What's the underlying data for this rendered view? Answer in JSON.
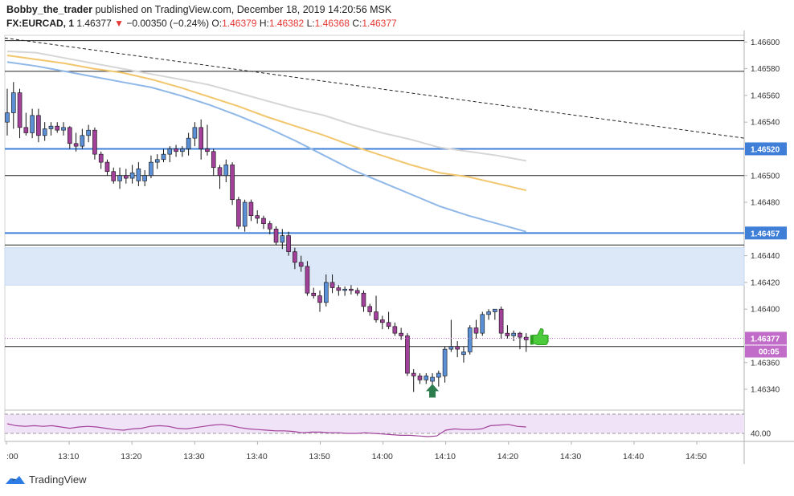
{
  "header": {
    "author": "Bobby_the_trader",
    "published_text": " published on TradingView.com, December 18, 2019 14:20:56 MSK",
    "symbol": "FX:EURCAD, 1",
    "last": "1.46377",
    "arrow": "▼",
    "change": "−0.00350 (−0.24%)",
    "o_label": "O:",
    "o_value": "1.46379",
    "h_label": "H:",
    "h_value": "1.46382",
    "l_label": "L:",
    "l_value": "1.46368",
    "c_label": "C:",
    "c_value": "1.46377"
  },
  "footer": {
    "brand": "TradingView",
    "logo_icon": "tradingview-logo-icon"
  },
  "colors": {
    "bull": "#5b8fd6",
    "bear": "#a2419a",
    "ma_gray": "#d6d6d6",
    "ma_orange": "#f2c66d",
    "ma_blue": "#8fb8e8",
    "level_blue": "#3f7fd8",
    "zone": "#dce8f8",
    "rsi_fill": "#f1e3f7",
    "rsi_line": "#a2419a",
    "price_badge": "#c06cc8",
    "arrow_green": "#2e7d4f",
    "thumb_green": "#4ccc3c"
  },
  "chart_data": {
    "type": "candlestick",
    "title": "",
    "ylim": [
      1.46325,
      1.46605
    ],
    "y_ticks": [
      "1.46600",
      "1.46580",
      "1.46560",
      "1.46540",
      "1.46500",
      "1.46480",
      "1.46440",
      "1.46420",
      "1.46400",
      "1.46360",
      "1.46340"
    ],
    "x_ticks": [
      ":00",
      "13:10",
      "13:20",
      "13:30",
      "13:40",
      "13:50",
      "14:00",
      "14:10",
      "14:20",
      "14:30",
      "14:40",
      "14:50"
    ],
    "price_labels": {
      "level_high": "1.46520",
      "level_low": "1.46457",
      "last": "1.46377",
      "countdown": "00:05"
    },
    "horizontal_levels": [
      {
        "price": 1.46601,
        "style": "black"
      },
      {
        "price": 1.46578,
        "style": "black"
      },
      {
        "price": 1.4652,
        "style": "blue"
      },
      {
        "price": 1.465,
        "style": "black"
      },
      {
        "price": 1.46457,
        "style": "blue"
      },
      {
        "price": 1.46448,
        "style": "black"
      },
      {
        "price": 1.46372,
        "style": "black"
      }
    ],
    "zone": [
      1.46446,
      1.46418
    ],
    "trendline": {
      "start_price": 1.46603,
      "end_price": 1.46528
    },
    "candles": [
      [
        1.4654,
        1.46565,
        1.4653,
        1.46547
      ],
      [
        1.46547,
        1.4657,
        1.46535,
        1.46562
      ],
      [
        1.46562,
        1.46565,
        1.46528,
        1.46536
      ],
      [
        1.46536,
        1.46547,
        1.4653,
        1.46532
      ],
      [
        1.46532,
        1.4655,
        1.46528,
        1.46545
      ],
      [
        1.46545,
        1.4655,
        1.46525,
        1.4653
      ],
      [
        1.4653,
        1.4654,
        1.46526,
        1.46535
      ],
      [
        1.46535,
        1.4654,
        1.4653,
        1.46537
      ],
      [
        1.46537,
        1.4654,
        1.46532,
        1.46534
      ],
      [
        1.46534,
        1.4654,
        1.4653,
        1.46536
      ],
      [
        1.46536,
        1.46537,
        1.4652,
        1.46524
      ],
      [
        1.46524,
        1.46532,
        1.46518,
        1.46522
      ],
      [
        1.46522,
        1.46535,
        1.4652,
        1.4653
      ],
      [
        1.4653,
        1.46538,
        1.46525,
        1.46534
      ],
      [
        1.46534,
        1.46536,
        1.46512,
        1.46516
      ],
      [
        1.46516,
        1.46518,
        1.46505,
        1.4651
      ],
      [
        1.4651,
        1.46512,
        1.465,
        1.46503
      ],
      [
        1.46503,
        1.46506,
        1.46494,
        1.46496
      ],
      [
        1.46496,
        1.46506,
        1.4649,
        1.465
      ],
      [
        1.465,
        1.46505,
        1.46494,
        1.46498
      ],
      [
        1.46498,
        1.46508,
        1.46494,
        1.46502
      ],
      [
        1.46496,
        1.4651,
        1.46492,
        1.46505
      ],
      [
        1.46496,
        1.46504,
        1.46492,
        1.465
      ],
      [
        1.465,
        1.46515,
        1.46498,
        1.4651
      ],
      [
        1.4651,
        1.46516,
        1.46505,
        1.46512
      ],
      [
        1.46512,
        1.4652,
        1.4651,
        1.46516
      ],
      [
        1.46516,
        1.46522,
        1.4651,
        1.4652
      ],
      [
        1.4652,
        1.46523,
        1.46514,
        1.46518
      ],
      [
        1.46518,
        1.46522,
        1.46514,
        1.4652
      ],
      [
        1.4652,
        1.46532,
        1.46515,
        1.46528
      ],
      [
        1.46528,
        1.4654,
        1.46522,
        1.46536
      ],
      [
        1.46536,
        1.46542,
        1.46512,
        1.4652
      ],
      [
        1.4652,
        1.46538,
        1.46515,
        1.46518
      ],
      [
        1.46518,
        1.4652,
        1.465,
        1.46506
      ],
      [
        1.46506,
        1.46508,
        1.4649,
        1.465
      ],
      [
        1.465,
        1.46512,
        1.46495,
        1.46508
      ],
      [
        1.46508,
        1.4651,
        1.46478,
        1.46482
      ],
      [
        1.46482,
        1.46484,
        1.4646,
        1.46462
      ],
      [
        1.46462,
        1.46482,
        1.46458,
        1.4648
      ],
      [
        1.4648,
        1.46482,
        1.46466,
        1.4647
      ],
      [
        1.4647,
        1.46474,
        1.46464,
        1.46468
      ],
      [
        1.46468,
        1.4647,
        1.4646,
        1.46464
      ],
      [
        1.46464,
        1.46466,
        1.46456,
        1.4646
      ],
      [
        1.4646,
        1.46462,
        1.46448,
        1.4645
      ],
      [
        1.4645,
        1.4646,
        1.46445,
        1.46455
      ],
      [
        1.46455,
        1.46458,
        1.4644,
        1.46443
      ],
      [
        1.46443,
        1.46446,
        1.4643,
        1.46435
      ],
      [
        1.46435,
        1.4644,
        1.46428,
        1.46432
      ],
      [
        1.46432,
        1.46436,
        1.4641,
        1.46412
      ],
      [
        1.46412,
        1.46416,
        1.46408,
        1.4641
      ],
      [
        1.4641,
        1.46414,
        1.46398,
        1.46405
      ],
      [
        1.46405,
        1.46426,
        1.46402,
        1.4642
      ],
      [
        1.4642,
        1.46426,
        1.46412,
        1.46416
      ],
      [
        1.46416,
        1.46418,
        1.4641,
        1.46414
      ],
      [
        1.46414,
        1.46417,
        1.4641,
        1.46415
      ],
      [
        1.46415,
        1.46418,
        1.46411,
        1.46414
      ],
      [
        1.46414,
        1.46416,
        1.4641,
        1.46412
      ],
      [
        1.46412,
        1.46414,
        1.46398,
        1.46402
      ],
      [
        1.46402,
        1.46404,
        1.46395,
        1.46398
      ],
      [
        1.46398,
        1.4641,
        1.4639,
        1.46392
      ],
      [
        1.46392,
        1.46395,
        1.46385,
        1.4639
      ],
      [
        1.4639,
        1.46398,
        1.46385,
        1.46387
      ],
      [
        1.46387,
        1.4639,
        1.4638,
        1.46382
      ],
      [
        1.46382,
        1.46386,
        1.46377,
        1.4638
      ],
      [
        1.4638,
        1.46382,
        1.4635,
        1.46352
      ],
      [
        1.46352,
        1.46355,
        1.46338,
        1.4635
      ],
      [
        1.4635,
        1.46352,
        1.46344,
        1.46347
      ],
      [
        1.46347,
        1.46352,
        1.46344,
        1.4635
      ],
      [
        1.46346,
        1.46352,
        1.46342,
        1.46349
      ],
      [
        1.46349,
        1.46354,
        1.46342,
        1.46352
      ],
      [
        1.4635,
        1.46372,
        1.46345,
        1.4637
      ],
      [
        1.4637,
        1.46392,
        1.46368,
        1.46372
      ],
      [
        1.46372,
        1.46376,
        1.46364,
        1.4637
      ],
      [
        1.46366,
        1.46372,
        1.4636,
        1.46368
      ],
      [
        1.46368,
        1.46388,
        1.46366,
        1.46386
      ],
      [
        1.46386,
        1.46392,
        1.46378,
        1.46382
      ],
      [
        1.46382,
        1.46398,
        1.4638,
        1.46396
      ],
      [
        1.46396,
        1.464,
        1.46392,
        1.46398
      ],
      [
        1.46398,
        1.464,
        1.46392,
        1.464
      ],
      [
        1.464,
        1.46402,
        1.46378,
        1.46382
      ],
      [
        1.46382,
        1.46388,
        1.46378,
        1.4638
      ],
      [
        1.4638,
        1.46384,
        1.46376,
        1.46382
      ],
      [
        1.46382,
        1.46383,
        1.4637,
        1.46379
      ],
      [
        1.46379,
        1.46382,
        1.46368,
        1.46377
      ]
    ],
    "ma_gray": [
      1.46593,
      1.46592,
      1.46588,
      1.46584,
      1.4658,
      1.46576,
      1.46572,
      1.46568,
      1.46562,
      1.46556,
      1.4655,
      1.46545,
      1.46538,
      1.46532,
      1.46527,
      1.46521,
      1.46518,
      1.46515,
      1.46511
    ],
    "ma_orange": [
      1.4659,
      1.46587,
      1.46584,
      1.4658,
      1.46577,
      1.46572,
      1.46566,
      1.46559,
      1.46552,
      1.46544,
      1.46537,
      1.4653,
      1.46522,
      1.46515,
      1.46508,
      1.46502,
      1.46499,
      1.46494,
      1.46489
    ],
    "ma_blue": [
      1.46585,
      1.46582,
      1.46578,
      1.46574,
      1.4657,
      1.46566,
      1.4656,
      1.46553,
      1.46545,
      1.46536,
      1.46526,
      1.46515,
      1.46504,
      1.46495,
      1.46486,
      1.46477,
      1.4647,
      1.46464,
      1.46458
    ],
    "rsi": {
      "label": "40.00",
      "levels": [
        70,
        40
      ],
      "values": [
        55,
        52,
        51,
        52,
        51,
        52,
        50,
        48,
        50,
        51,
        50,
        48,
        46,
        45,
        47,
        48,
        51,
        52,
        51,
        48,
        47,
        49,
        51,
        53,
        54,
        52,
        49,
        47,
        46,
        45,
        44,
        44,
        43,
        41,
        42,
        42,
        41,
        41,
        40,
        40,
        41,
        40,
        39,
        38,
        37,
        37,
        36,
        35,
        36,
        45,
        47,
        46,
        46,
        47,
        52,
        53,
        54,
        51,
        50
      ]
    }
  }
}
